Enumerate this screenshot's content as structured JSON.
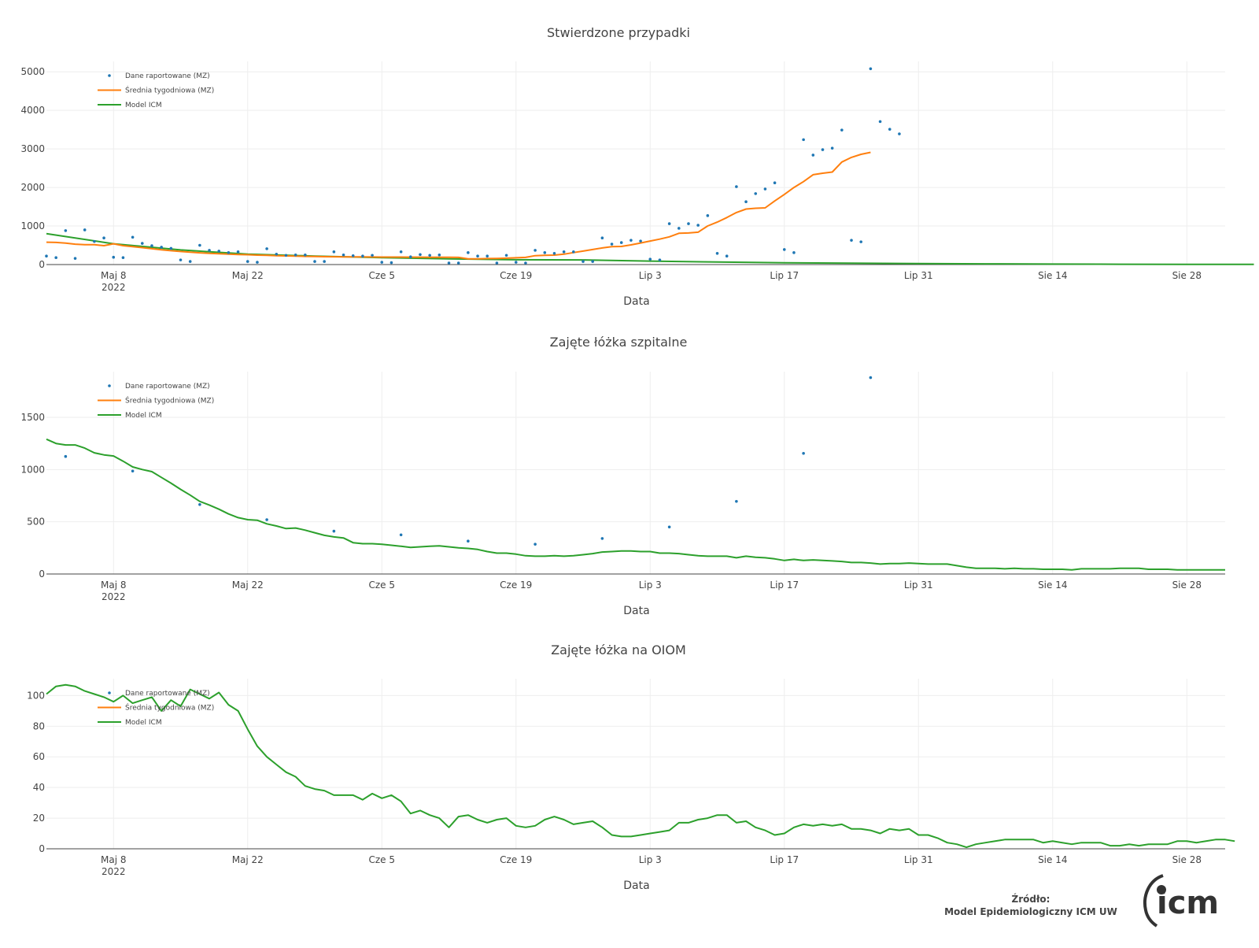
{
  "x_axis_label": "Data",
  "year_label": "2022",
  "legend": [
    "Dane raportowane (MZ)",
    "Średnia tygodniowa (MZ)",
    "Model ICM"
  ],
  "colors": {
    "reported": "#1f77b4",
    "weekly_avg": "#ff7f0e",
    "model": "#2ca02c",
    "grid": "#eeeeee",
    "axis": "#444444"
  },
  "source": {
    "label": "Źródło:",
    "text": "Model Epidemiologiczny ICM UW",
    "logo_text": "icm"
  },
  "chart_data": [
    {
      "type": "line",
      "title": "Stwierdzone przypadki",
      "xlabel": "Data",
      "xlim": [
        "2022-05-01",
        "2022-09-01"
      ],
      "xticks": [
        {
          "date": "2022-05-08",
          "label": "Maj 8"
        },
        {
          "date": "2022-05-22",
          "label": "Maj 22"
        },
        {
          "date": "2022-06-05",
          "label": "Cze 5"
        },
        {
          "date": "2022-06-19",
          "label": "Cze 19"
        },
        {
          "date": "2022-07-03",
          "label": "Lip 3"
        },
        {
          "date": "2022-07-17",
          "label": "Lip 17"
        },
        {
          "date": "2022-07-31",
          "label": "Lip 31"
        },
        {
          "date": "2022-08-14",
          "label": "Sie 14"
        },
        {
          "date": "2022-08-28",
          "label": "Sie 28"
        }
      ],
      "ylim": [
        0,
        5270
      ],
      "yticks": [
        0,
        1000,
        2000,
        3000,
        4000,
        5000
      ],
      "series": [
        {
          "name": "Dane raportowane (MZ)",
          "kind": "markers",
          "start": "2022-05-01",
          "step_days": 1,
          "values": [
            220,
            180,
            880,
            160,
            900,
            600,
            690,
            190,
            180,
            710,
            550,
            490,
            450,
            420,
            120,
            80,
            500,
            370,
            350,
            310,
            330,
            80,
            60,
            410,
            270,
            240,
            250,
            250,
            80,
            80,
            330,
            250,
            230,
            220,
            240,
            60,
            50,
            330,
            200,
            260,
            240,
            250,
            40,
            40,
            310,
            220,
            220,
            40,
            240,
            60,
            40,
            370,
            310,
            290,
            330,
            330,
            80,
            80,
            690,
            530,
            570,
            630,
            610,
            140,
            120,
            1060,
            940,
            1060,
            1020,
            1270,
            290,
            220,
            2020,
            1630,
            1840,
            1960,
            2120,
            390,
            310,
            3240,
            2840,
            2980,
            3020,
            3490,
            630,
            590,
            5080,
            3710,
            3510,
            3390
          ]
        },
        {
          "name": "Średnia tygodniowa (MZ)",
          "kind": "line",
          "start": "2022-05-01",
          "step_days": 1,
          "values": [
            580,
            575,
            555,
            530,
            515,
            515,
            490,
            540,
            490,
            465,
            440,
            410,
            385,
            360,
            340,
            320,
            305,
            290,
            280,
            270,
            262,
            255,
            245,
            238,
            230,
            224,
            218,
            212,
            208,
            205,
            203,
            200,
            200,
            198,
            196,
            195,
            195,
            194,
            193,
            192,
            190,
            190,
            188,
            185,
            150,
            150,
            155,
            160,
            165,
            175,
            185,
            230,
            240,
            245,
            270,
            310,
            350,
            390,
            430,
            465,
            470,
            510,
            560,
            610,
            660,
            720,
            810,
            820,
            840,
            1000,
            1100,
            1220,
            1350,
            1440,
            1460,
            1470,
            1650,
            1820,
            2000,
            2150,
            2330,
            2370,
            2400,
            2660,
            2780,
            2860,
            2910
          ]
        },
        {
          "name": "Model ICM",
          "kind": "line",
          "start": "2022-05-01",
          "step_days": 7,
          "values": [
            800,
            540,
            380,
            270,
            220,
            180,
            150,
            125,
            120,
            90,
            65,
            45,
            35,
            25,
            18,
            12,
            8,
            5,
            4
          ]
        }
      ]
    },
    {
      "type": "line",
      "title": "Zajęte łóżka szpitalne",
      "xlabel": "Data",
      "xlim": [
        "2022-05-01",
        "2022-09-01"
      ],
      "ylim": [
        0,
        1937
      ],
      "yticks": [
        0,
        500,
        1000,
        1500
      ],
      "series": [
        {
          "name": "Dane raportowane (MZ)",
          "kind": "markers",
          "start": "2022-05-03",
          "step_days": 7,
          "values": [
            1125,
            985,
            665,
            520,
            410,
            375,
            315,
            285,
            340,
            450,
            695,
            1155,
            1880
          ]
        },
        {
          "name": "Średnia tygodniowa (MZ)",
          "kind": "line",
          "start": "2022-05-01",
          "step_days": 1,
          "values": []
        },
        {
          "name": "Model ICM",
          "kind": "line",
          "start": "2022-05-01",
          "step_days": 1,
          "values": [
            1290,
            1250,
            1235,
            1235,
            1205,
            1160,
            1140,
            1130,
            1080,
            1025,
            1000,
            980,
            925,
            870,
            810,
            755,
            695,
            660,
            620,
            575,
            540,
            520,
            515,
            480,
            460,
            435,
            440,
            420,
            395,
            370,
            355,
            345,
            300,
            290,
            290,
            285,
            275,
            265,
            255,
            260,
            265,
            270,
            260,
            250,
            245,
            235,
            215,
            200,
            200,
            190,
            175,
            170,
            170,
            175,
            170,
            175,
            185,
            195,
            210,
            215,
            220,
            220,
            215,
            215,
            200,
            200,
            195,
            185,
            175,
            170,
            170,
            170,
            155,
            170,
            160,
            155,
            145,
            130,
            140,
            130,
            135,
            130,
            125,
            120,
            110,
            110,
            105,
            95,
            100,
            100,
            105,
            100,
            95,
            95,
            95,
            80,
            65,
            55,
            55,
            55,
            50,
            55,
            50,
            50,
            45,
            45,
            45,
            40,
            50,
            50,
            50,
            50,
            55,
            55,
            55,
            45,
            45,
            45,
            40,
            40,
            40,
            40,
            40,
            40
          ]
        }
      ]
    },
    {
      "type": "line",
      "title": "Zajęte łóżka na OIOM",
      "xlabel": "Data",
      "xlim": [
        "2022-05-01",
        "2022-09-01"
      ],
      "ylim": [
        0,
        111
      ],
      "yticks": [
        0,
        20,
        40,
        60,
        80,
        100
      ],
      "series": [
        {
          "name": "Dane raportowane (MZ)",
          "kind": "markers",
          "start": "2022-05-01",
          "step_days": 1,
          "values": []
        },
        {
          "name": "Średnia tygodniowa (MZ)",
          "kind": "line",
          "start": "2022-05-01",
          "step_days": 1,
          "values": []
        },
        {
          "name": "Model ICM",
          "kind": "line",
          "start": "2022-05-01",
          "step_days": 1,
          "values": [
            101,
            106,
            107,
            106,
            103,
            101,
            99,
            96,
            100,
            95,
            97,
            99,
            90,
            97,
            93,
            104,
            101,
            98,
            102,
            94,
            90,
            78,
            67,
            60,
            55,
            50,
            47,
            41,
            39,
            38,
            35,
            35,
            35,
            32,
            36,
            33,
            35,
            31,
            23,
            25,
            22,
            20,
            14,
            21,
            22,
            19,
            17,
            19,
            20,
            15,
            14,
            15,
            19,
            21,
            19,
            16,
            17,
            18,
            14,
            9,
            8,
            8,
            9,
            10,
            11,
            12,
            17,
            17,
            19,
            20,
            22,
            22,
            17,
            18,
            14,
            12,
            9,
            10,
            14,
            16,
            15,
            16,
            15,
            16,
            13,
            13,
            12,
            10,
            13,
            12,
            13,
            9,
            9,
            7,
            4,
            3,
            1,
            3,
            4,
            5,
            6,
            6,
            6,
            6,
            4,
            5,
            4,
            3,
            4,
            4,
            4,
            2,
            2,
            3,
            2,
            3,
            3,
            3,
            5,
            5,
            4,
            5,
            6,
            6,
            5
          ]
        }
      ]
    }
  ]
}
